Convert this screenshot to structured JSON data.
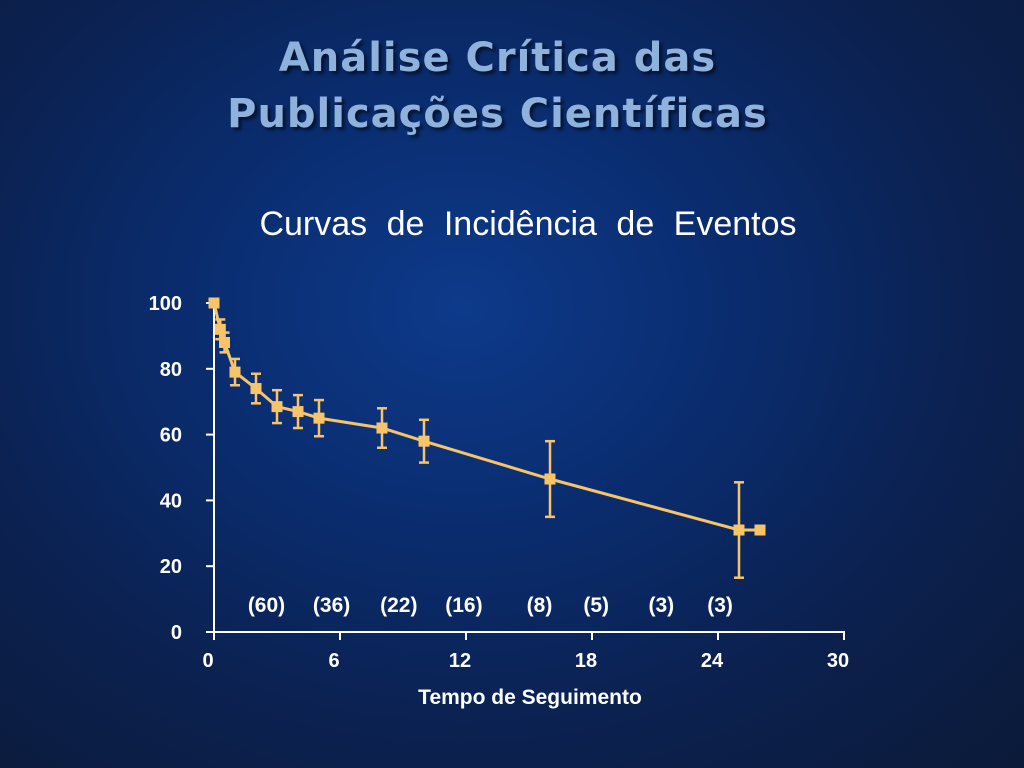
{
  "slide": {
    "title_line1": "Análise Crítica das",
    "title_line2": "Publicações Científicas",
    "subtitle": "Curvas de Incidência de Eventos"
  },
  "colors": {
    "series": "#f7c46a",
    "axis": "#ffffff",
    "title": "#8fb2dc"
  },
  "chart_data": {
    "type": "line",
    "title": "Curvas de Incidência de Eventos",
    "xlabel": "Tempo de Seguimento",
    "ylabel": "",
    "xlim": [
      0,
      30
    ],
    "ylim": [
      0,
      100
    ],
    "x_ticks": [
      0,
      6,
      12,
      18,
      24,
      30
    ],
    "y_ticks": [
      0,
      20,
      40,
      60,
      80,
      100
    ],
    "grid": false,
    "series": [
      {
        "points": [
          {
            "x": 0,
            "y": 100,
            "err": 0
          },
          {
            "x": 0.3,
            "y": 92,
            "err": 3
          },
          {
            "x": 0.5,
            "y": 88,
            "err": 3
          },
          {
            "x": 1,
            "y": 79,
            "err": 4
          },
          {
            "x": 2,
            "y": 74,
            "err": 4.5
          },
          {
            "x": 3,
            "y": 68.5,
            "err": 5
          },
          {
            "x": 4,
            "y": 67,
            "err": 5
          },
          {
            "x": 5,
            "y": 65,
            "err": 5.5
          },
          {
            "x": 8,
            "y": 62,
            "err": 6
          },
          {
            "x": 10,
            "y": 58,
            "err": 6.5
          },
          {
            "x": 16,
            "y": 46.5,
            "err": 11.5
          },
          {
            "x": 25,
            "y": 31,
            "err": 14.5
          },
          {
            "x": 26,
            "y": 31,
            "err": 0
          }
        ]
      }
    ],
    "at_risk_labels": [
      {
        "x": 2.5,
        "text": "(60)"
      },
      {
        "x": 5.6,
        "text": "(36)"
      },
      {
        "x": 8.8,
        "text": "(22)"
      },
      {
        "x": 11.9,
        "text": "(16)"
      },
      {
        "x": 15.5,
        "text": "(8)"
      },
      {
        "x": 18.2,
        "text": "(5)"
      },
      {
        "x": 21.3,
        "text": "(3)"
      },
      {
        "x": 24.1,
        "text": "(3)"
      }
    ]
  }
}
